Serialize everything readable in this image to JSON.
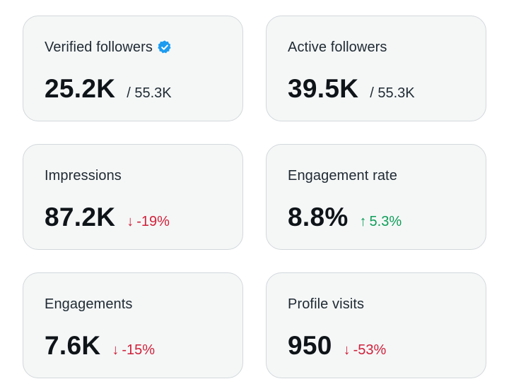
{
  "colors": {
    "card_background": "#f5f7f7",
    "card_border": "#d3d8db",
    "verified_badge": "#1d9bf0",
    "delta_down": "#d0213a",
    "delta_up": "#0f9d58"
  },
  "cards": [
    {
      "label": "Verified followers",
      "icon": "verified-badge-icon",
      "value": "25.2K",
      "total": "/ 55.3K"
    },
    {
      "label": "Active followers",
      "value": "39.5K",
      "total": "/ 55.3K"
    },
    {
      "label": "Impressions",
      "value": "87.2K",
      "delta": {
        "direction": "down",
        "arrow": "↓",
        "text": "-19%"
      }
    },
    {
      "label": "Engagement rate",
      "value": "8.8%",
      "delta": {
        "direction": "up",
        "arrow": "↑",
        "text": "5.3%"
      }
    },
    {
      "label": "Engagements",
      "value": "7.6K",
      "delta": {
        "direction": "down",
        "arrow": "↓",
        "text": "-15%"
      }
    },
    {
      "label": "Profile visits",
      "value": "950",
      "delta": {
        "direction": "down",
        "arrow": "↓",
        "text": "-53%"
      }
    }
  ]
}
